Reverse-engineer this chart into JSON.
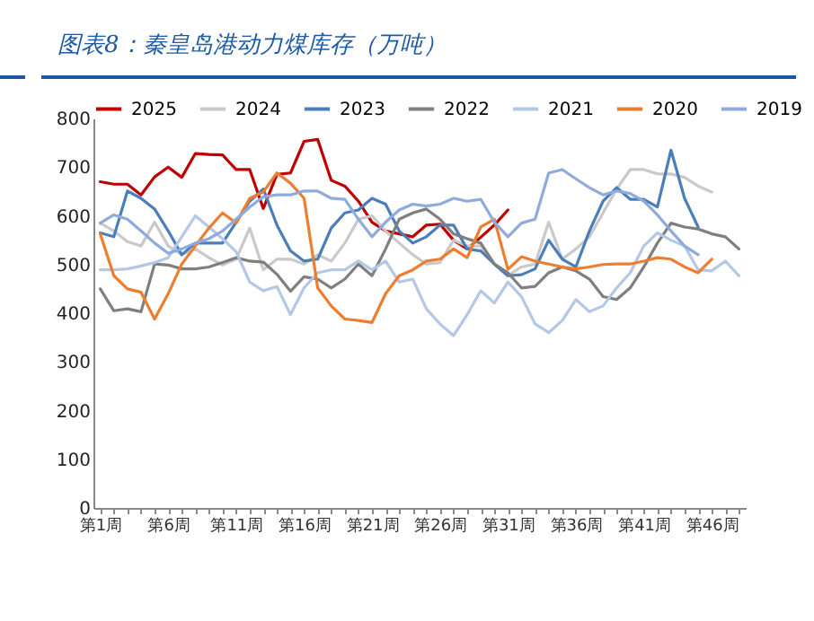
{
  "chart_data": {
    "type": "line",
    "title": "图表8：秦皇岛港动力煤库存（万吨）",
    "categories": [
      "第1周",
      null,
      null,
      null,
      null,
      "第6周",
      null,
      null,
      null,
      null,
      "第11周",
      null,
      null,
      null,
      null,
      "第16周",
      null,
      null,
      null,
      null,
      "第21周",
      null,
      null,
      null,
      null,
      "第26周",
      null,
      null,
      null,
      null,
      "第31周",
      null,
      null,
      null,
      null,
      "第36周",
      null,
      null,
      null,
      null,
      "第41周",
      null,
      null,
      null,
      null,
      "第46周",
      null,
      null
    ],
    "ylim": [
      0,
      800
    ],
    "yticks": [
      0,
      100,
      200,
      300,
      400,
      500,
      600,
      700,
      800
    ],
    "grid": false,
    "legend": "top",
    "line_style": "solid",
    "marker": "none",
    "series": [
      {
        "name": "2025",
        "color": "#c00000",
        "values": [
          670,
          665,
          665,
          643,
          680,
          700,
          679,
          728,
          726,
          725,
          695,
          695,
          615,
          685,
          688,
          753,
          757,
          673,
          661,
          630,
          587,
          569,
          563,
          557,
          581,
          583,
          550,
          532,
          556,
          581,
          612,
          null,
          null,
          null,
          null,
          null,
          null,
          null,
          null,
          null,
          null,
          null,
          null,
          null,
          null,
          null,
          null,
          null
        ]
      },
      {
        "name": "2024",
        "color": "#c9c9c9",
        "values": [
          585,
          569,
          547,
          538,
          587,
          538,
          520,
          532,
          514,
          499,
          511,
          575,
          489,
          511,
          511,
          501,
          520,
          507,
          544,
          593,
          600,
          569,
          544,
          520,
          501,
          504,
          550,
          538,
          538,
          501,
          477,
          495,
          501,
          587,
          511,
          532,
          557,
          606,
          655,
          695,
          695,
          686,
          686,
          679,
          661,
          649,
          null,
          null
        ]
      },
      {
        "name": "2023",
        "color": "#4a7ebb",
        "values": [
          565,
          557,
          651,
          636,
          614,
          569,
          520,
          544,
          544,
          544,
          587,
          630,
          655,
          581,
          528,
          507,
          511,
          575,
          606,
          612,
          636,
          624,
          569,
          544,
          557,
          581,
          581,
          532,
          528,
          501,
          477,
          479,
          491,
          550,
          511,
          495,
          569,
          630,
          658,
          634,
          634,
          618,
          735,
          636,
          577,
          null,
          null,
          null
        ]
      },
      {
        "name": "2022",
        "color": "#7f7f7f",
        "values": [
          450,
          405,
          409,
          403,
          501,
          499,
          491,
          491,
          495,
          504,
          514,
          507,
          505,
          480,
          445,
          475,
          470,
          452,
          470,
          501,
          477,
          532,
          593,
          606,
          614,
          593,
          563,
          553,
          544,
          501,
          483,
          452,
          455,
          483,
          495,
          487,
          470,
          434,
          428,
          452,
          495,
          544,
          585,
          577,
          573,
          563,
          557,
          532
        ]
      },
      {
        "name": "2021",
        "color": "#b4c7e7",
        "values": [
          489,
          489,
          491,
          497,
          504,
          514,
          557,
          600,
          577,
          553,
          526,
          464,
          446,
          455,
          397,
          452,
          483,
          489,
          489,
          507,
          489,
          507,
          464,
          470,
          409,
          378,
          354,
          397,
          446,
          421,
          464,
          434,
          378,
          360,
          385,
          428,
          403,
          415,
          452,
          483,
          538,
          565,
          550,
          538,
          489,
          487,
          507,
          477
        ]
      },
      {
        "name": "2020",
        "color": "#ed7d31",
        "values": [
          563,
          477,
          450,
          443,
          388,
          440,
          501,
          538,
          575,
          606,
          585,
          636,
          649,
          688,
          667,
          636,
          452,
          415,
          388,
          385,
          381,
          440,
          477,
          489,
          507,
          511,
          532,
          514,
          577,
          593,
          490,
          516,
          507,
          501,
          495,
          491,
          495,
          500,
          501,
          501,
          507,
          514,
          511,
          495,
          483,
          511,
          null,
          null
        ]
      },
      {
        "name": "2019",
        "color": "#8faadc",
        "values": [
          585,
          602,
          593,
          569,
          544,
          523,
          532,
          544,
          553,
          569,
          593,
          618,
          639,
          643,
          643,
          651,
          651,
          636,
          634,
          593,
          557,
          587,
          612,
          624,
          620,
          624,
          636,
          630,
          634,
          587,
          557,
          585,
          593,
          688,
          695,
          676,
          658,
          643,
          651,
          646,
          630,
          602,
          569,
          538,
          520,
          null,
          null,
          null
        ]
      }
    ]
  }
}
